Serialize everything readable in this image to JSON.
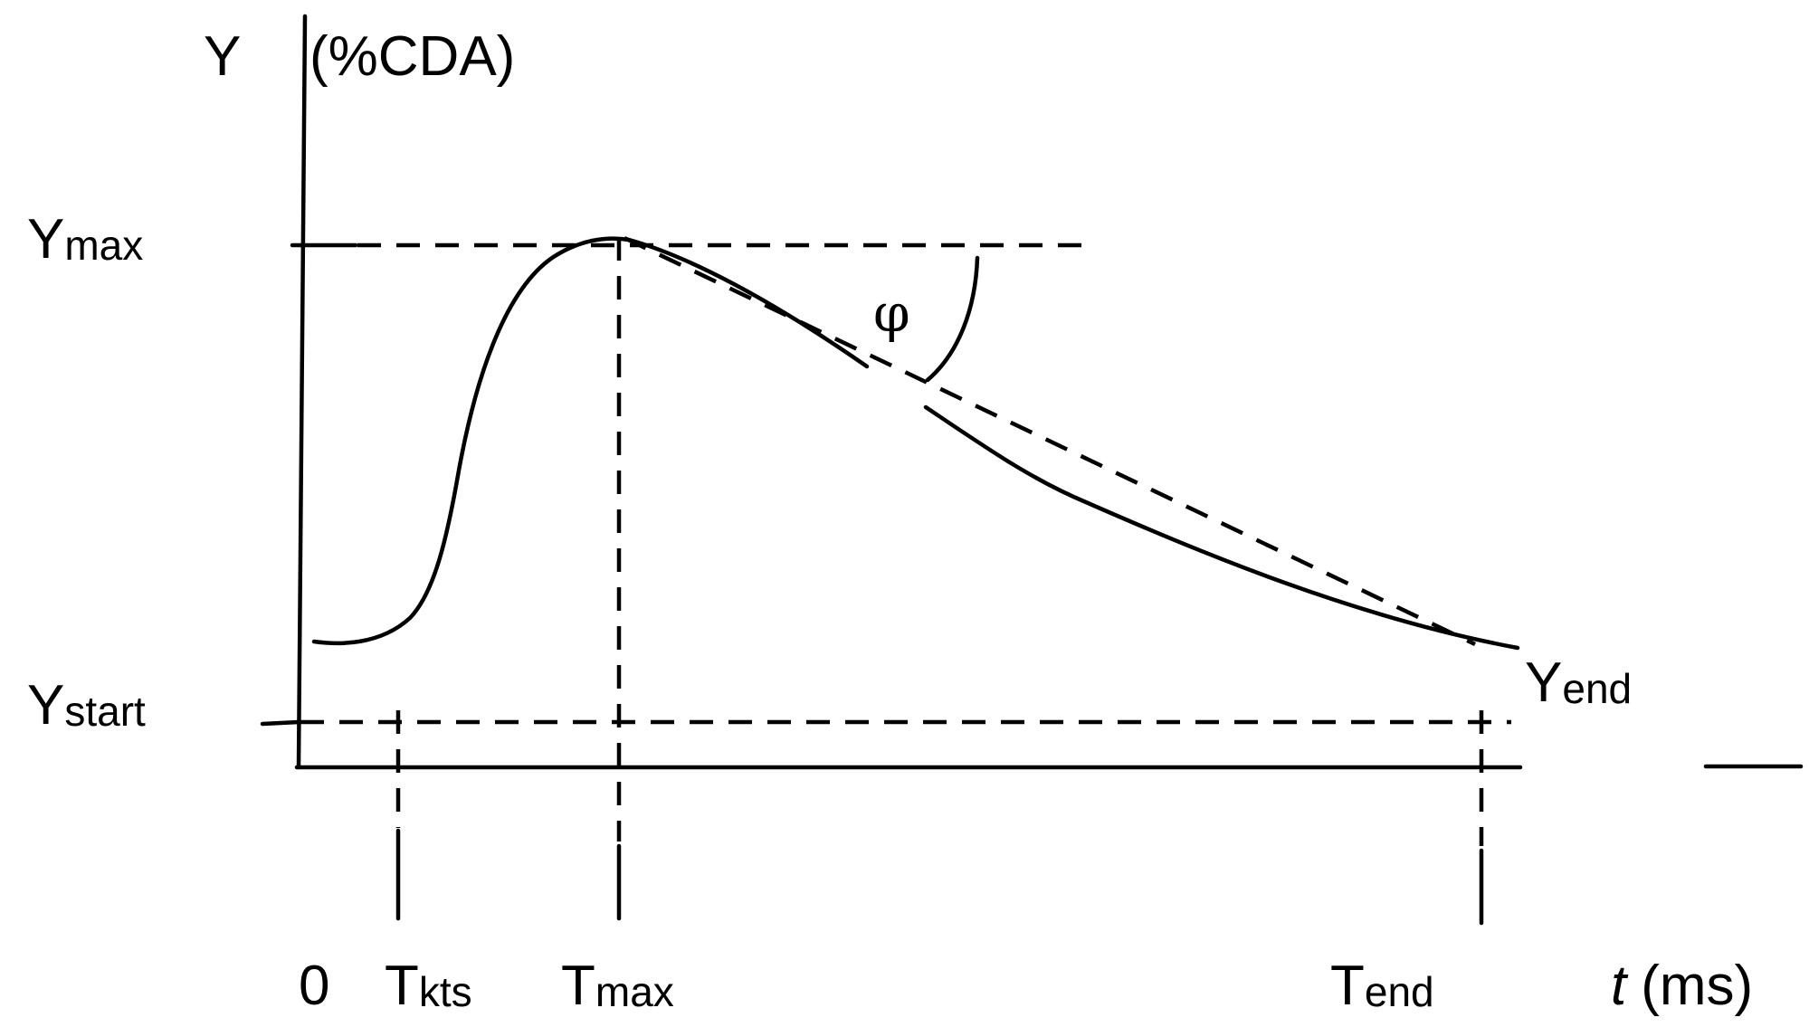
{
  "diagram": {
    "y_axis_symbol": "Y",
    "y_axis_unit": "(%CDA)",
    "y_max": {
      "main": "Y",
      "sub": "max"
    },
    "y_start": {
      "main": "Y",
      "sub": "start"
    },
    "y_end": {
      "main": "Y",
      "sub": "end"
    },
    "angle_symbol": "φ",
    "x_origin": "0",
    "t_kts": {
      "main": "T",
      "sub": "kts"
    },
    "t_max": {
      "main": "T",
      "sub": "max"
    },
    "t_end": {
      "main": "T",
      "sub": "end"
    },
    "x_axis_symbol": "t",
    "x_axis_unit": "(ms)"
  },
  "colors": {
    "background": "#ffffff",
    "ink": "#000000"
  }
}
